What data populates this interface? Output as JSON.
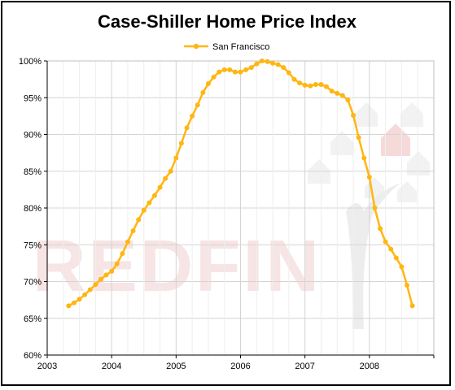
{
  "chart_data": {
    "type": "line",
    "title": "Case-Shiller Home Price Index",
    "xlabel": "",
    "ylabel": "",
    "xlim": [
      2003,
      2009
    ],
    "ylim": [
      60,
      100
    ],
    "x_ticks": [
      "2003",
      "2004",
      "2005",
      "2006",
      "2007",
      "2008"
    ],
    "y_ticks": [
      "60%",
      "65%",
      "70%",
      "75%",
      "80%",
      "85%",
      "90%",
      "95%",
      "100%"
    ],
    "grid": true,
    "legend_position": "top-center",
    "watermark": "REDFIN",
    "colors": {
      "series": "#ffb612",
      "grid": "#d4d4d4",
      "watermark": "#f7e4e4"
    },
    "series": [
      {
        "name": "San Francisco",
        "x": [
          2003.333,
          2003.417,
          2003.5,
          2003.583,
          2003.667,
          2003.75,
          2003.833,
          2003.917,
          2004.0,
          2004.083,
          2004.167,
          2004.25,
          2004.333,
          2004.417,
          2004.5,
          2004.583,
          2004.667,
          2004.75,
          2004.833,
          2004.917,
          2005.0,
          2005.083,
          2005.167,
          2005.25,
          2005.333,
          2005.417,
          2005.5,
          2005.583,
          2005.667,
          2005.75,
          2005.833,
          2005.917,
          2006.0,
          2006.083,
          2006.167,
          2006.25,
          2006.333,
          2006.417,
          2006.5,
          2006.583,
          2006.667,
          2006.75,
          2006.833,
          2006.917,
          2007.0,
          2007.083,
          2007.167,
          2007.25,
          2007.333,
          2007.417,
          2007.5,
          2007.583,
          2007.667,
          2007.75,
          2007.833,
          2007.917,
          2008.0,
          2008.083,
          2008.167,
          2008.25,
          2008.333,
          2008.417,
          2008.5,
          2008.583,
          2008.667
        ],
        "y": [
          66.7,
          67.1,
          67.6,
          68.2,
          68.9,
          69.6,
          70.3,
          70.9,
          71.4,
          72.4,
          73.8,
          75.4,
          76.9,
          78.4,
          79.7,
          80.7,
          81.7,
          82.8,
          84.0,
          85.0,
          86.8,
          88.8,
          90.9,
          92.5,
          94.0,
          95.7,
          96.9,
          97.8,
          98.5,
          98.8,
          98.8,
          98.5,
          98.5,
          98.8,
          99.1,
          99.6,
          100.0,
          99.9,
          99.7,
          99.5,
          99.1,
          98.4,
          97.5,
          97.0,
          96.7,
          96.6,
          96.8,
          96.8,
          96.5,
          95.9,
          95.6,
          95.3,
          94.7,
          92.6,
          89.6,
          86.8,
          84.2,
          80.0,
          77.2,
          75.4,
          74.4,
          73.2,
          72.0,
          69.5,
          66.7
        ]
      }
    ]
  }
}
